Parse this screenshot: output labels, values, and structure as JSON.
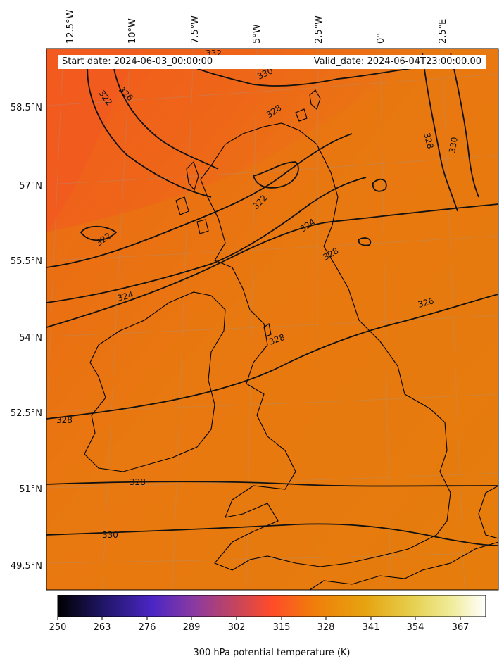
{
  "map": {
    "start_date": "Start date: 2024-06-03_00:00:00",
    "valid_date": "Valid_date: 2024-06-04T23:00:00.00",
    "longitude_labels": [
      "12.5°W",
      "10°W",
      "7.5°W",
      "5°W",
      "2.5°W",
      "0°",
      "2.5°E"
    ],
    "latitude_labels": [
      "58.5°N",
      "57°N",
      "55.5°N",
      "54°N",
      "52.5°N",
      "51°N",
      "49.5°N"
    ],
    "contour_labels": [
      "332",
      "330",
      "322",
      "326",
      "328",
      "328",
      "330",
      "322",
      "322",
      "324",
      "328",
      "324",
      "326",
      "328",
      "328",
      "328",
      "330"
    ],
    "colorbar": {
      "ticks": [
        "250",
        "263",
        "276",
        "289",
        "302",
        "315",
        "328",
        "341",
        "354",
        "367"
      ],
      "label": "300 hPa potential temperature (K)",
      "colors": [
        "#000000",
        "#1e1560",
        "#4a26c4",
        "#8c3aa0",
        "#c8455a",
        "#ff4b2a",
        "#f07e0a",
        "#e6a410",
        "#e6d050",
        "#f0ec9a",
        "#ffffff"
      ]
    },
    "field_colors": {
      "cold_nw": "#f15a20",
      "mid": "#ea6a12",
      "warm": "#e5820a"
    },
    "colormap": "CMRmap"
  }
}
